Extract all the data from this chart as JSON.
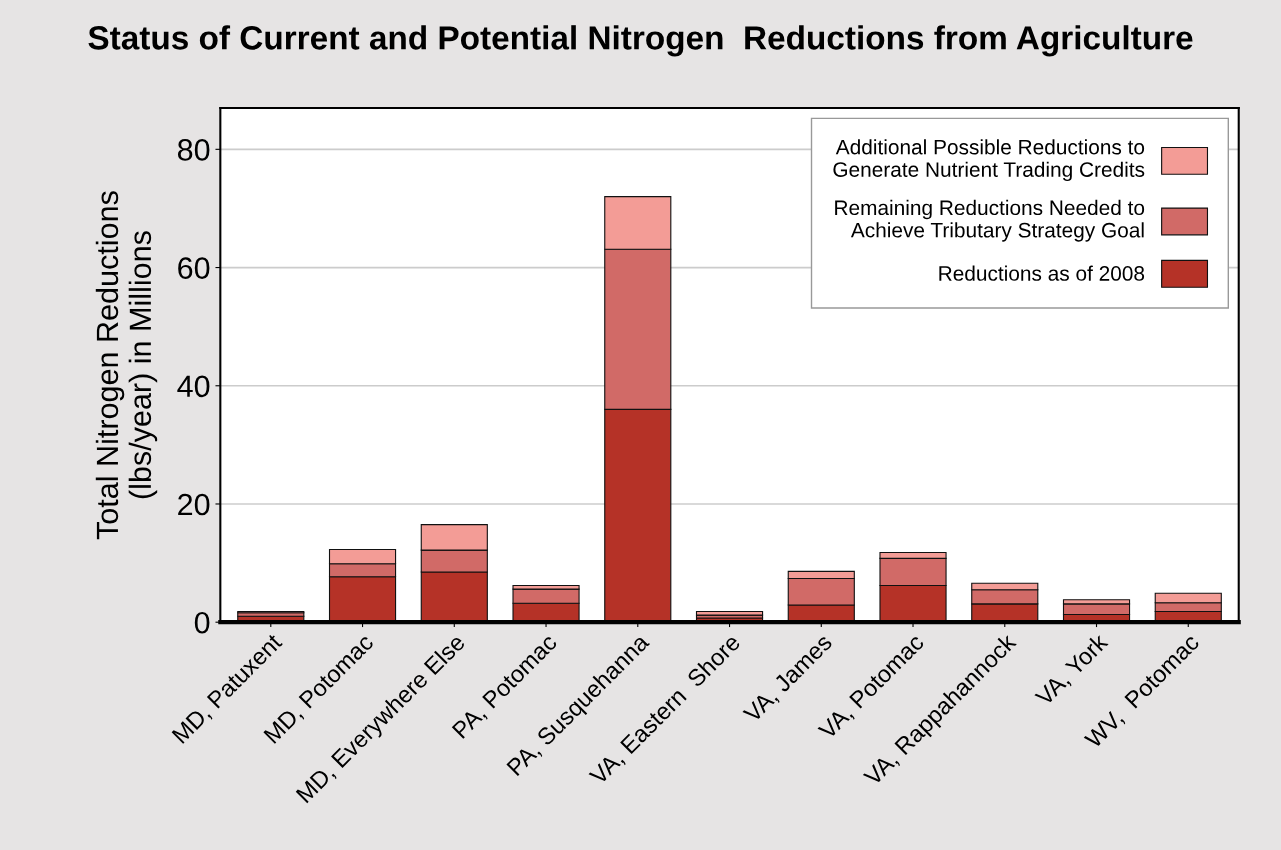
{
  "chart_data": {
    "type": "bar",
    "stacked": true,
    "title": "Status of Current and Potential Nitrogen  Reductions from Agriculture",
    "ylabel": "Total Nitrogen Reductions\n(lbs/year) in Millions",
    "categories": [
      "MD, Patuxent",
      "MD, Potomac",
      "MD, Everywhere Else",
      "PA, Potomac",
      "PA, Susquehanna",
      "VA, Eastern  Shore",
      "VA, James",
      "VA, Potomac",
      "VA, Rappahannock",
      "VA, York",
      "WV,  Potomac"
    ],
    "series": [
      {
        "name": "Reductions as of 2008",
        "color": "#b53227",
        "values": [
          1.0,
          7.7,
          8.5,
          3.2,
          36.0,
          0.7,
          2.9,
          6.2,
          3.1,
          1.3,
          1.8
        ]
      },
      {
        "name": "Remaining Reductions Needed to\nAchieve Tributary Strategy Goal",
        "color": "#d16a67",
        "values": [
          0.6,
          2.2,
          3.7,
          2.4,
          27.1,
          0.5,
          4.5,
          4.6,
          2.4,
          1.8,
          1.5
        ]
      },
      {
        "name": "Additional Possible Reductions to\nGenerate Nutrient Trading Credits",
        "color": "#f39c96",
        "values": [
          0.2,
          2.4,
          4.3,
          0.6,
          8.9,
          0.6,
          1.2,
          1.0,
          1.1,
          0.7,
          1.6
        ]
      }
    ],
    "ylim": [
      0,
      87
    ],
    "yticks": [
      0,
      20,
      40,
      60,
      80
    ],
    "grid": "y",
    "legend": "top right"
  }
}
